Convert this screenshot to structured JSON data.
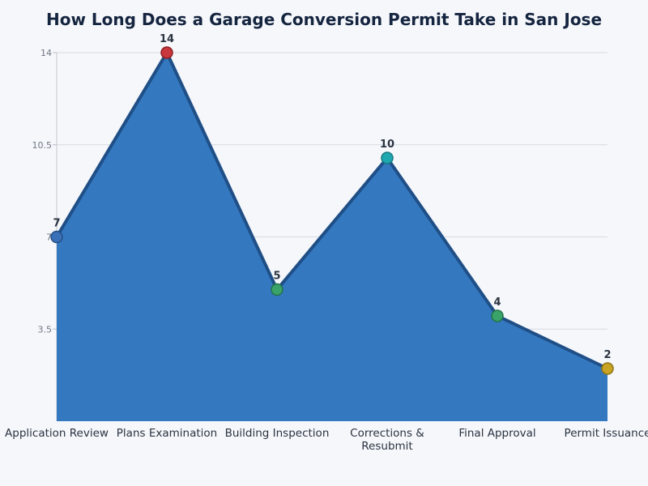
{
  "chart_data": {
    "type": "area",
    "title": "How Long Does a Garage Conversion Permit Take in San Jose",
    "categories": [
      "Application Review",
      "Plans Examination",
      "Building Inspection",
      "Corrections & Resubmit",
      "Final Approval",
      "Permit Issuance"
    ],
    "values": [
      7,
      14,
      5,
      10,
      4,
      2
    ],
    "ylim": [
      0,
      14
    ],
    "yticks": [
      3.5,
      7,
      10.5,
      14
    ],
    "ytick_labels": [
      "3.5",
      "7",
      "10.5",
      "14"
    ],
    "grid": true,
    "legend": "none",
    "colors": {
      "fill": "#3478c0",
      "line": "#1f4f86",
      "markers": [
        "#3a70b8",
        "#c8373d",
        "#3aa36a",
        "#20a8b0",
        "#3aa36a",
        "#c9a424"
      ],
      "marker_strokes": [
        "#264f86",
        "#8f1f25",
        "#24744a",
        "#167a80",
        "#24744a",
        "#8f7416"
      ]
    }
  }
}
